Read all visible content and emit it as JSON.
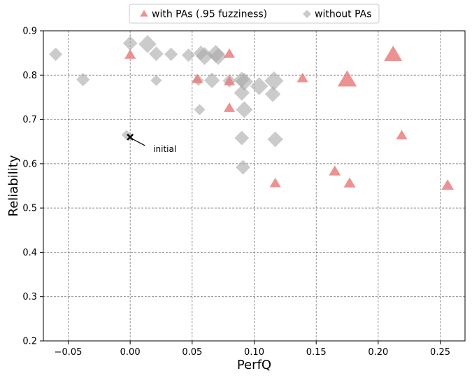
{
  "chart_data": {
    "type": "scatter",
    "xlabel": "PerfQ",
    "ylabel": "Reliability",
    "xlim": [
      -0.07,
      0.27
    ],
    "ylim": [
      0.2,
      0.9
    ],
    "xticks": [
      -0.05,
      0.0,
      0.05,
      0.1,
      0.15,
      0.2,
      0.25
    ],
    "xtick_labels": [
      "−0.05",
      "0.00",
      "0.05",
      "0.10",
      "0.15",
      "0.20",
      "0.25"
    ],
    "yticks": [
      0.2,
      0.3,
      0.4,
      0.5,
      0.6,
      0.7,
      0.8,
      0.9
    ],
    "ytick_labels": [
      "0.2",
      "0.3",
      "0.4",
      "0.5",
      "0.6",
      "0.7",
      "0.8",
      "0.9"
    ],
    "grid": true,
    "legend_position": "top-center",
    "series": [
      {
        "name": "with PAs (.95 fuzziness)",
        "marker": "triangle",
        "color": "#e8807f",
        "points": [
          {
            "x": 0.0,
            "y": 0.845,
            "s": 1
          },
          {
            "x": 0.054,
            "y": 0.79,
            "s": 1
          },
          {
            "x": 0.08,
            "y": 0.847,
            "s": 1
          },
          {
            "x": 0.08,
            "y": 0.785,
            "s": 1
          },
          {
            "x": 0.08,
            "y": 0.725,
            "s": 1
          },
          {
            "x": 0.117,
            "y": 0.555,
            "s": 1
          },
          {
            "x": 0.139,
            "y": 0.792,
            "s": 1
          },
          {
            "x": 0.165,
            "y": 0.582,
            "s": 1.05
          },
          {
            "x": 0.175,
            "y": 0.788,
            "s": 1.7
          },
          {
            "x": 0.177,
            "y": 0.555,
            "s": 1.05
          },
          {
            "x": 0.212,
            "y": 0.845,
            "s": 1.6
          },
          {
            "x": 0.219,
            "y": 0.663,
            "s": 1
          },
          {
            "x": 0.256,
            "y": 0.55,
            "s": 1.1
          }
        ]
      },
      {
        "name": "without PAs",
        "marker": "diamond",
        "color": "#a8a8a8",
        "points": [
          {
            "x": -0.06,
            "y": 0.847,
            "s": 1.2
          },
          {
            "x": -0.038,
            "y": 0.79,
            "s": 1.2
          },
          {
            "x": -0.003,
            "y": 0.665,
            "s": 0.9
          },
          {
            "x": 0.0,
            "y": 0.872,
            "s": 1.3
          },
          {
            "x": 0.014,
            "y": 0.87,
            "s": 1.6
          },
          {
            "x": 0.021,
            "y": 0.848,
            "s": 1.3
          },
          {
            "x": 0.021,
            "y": 0.788,
            "s": 1.0
          },
          {
            "x": 0.033,
            "y": 0.847,
            "s": 1.2
          },
          {
            "x": 0.047,
            "y": 0.845,
            "s": 1.2
          },
          {
            "x": 0.055,
            "y": 0.788,
            "s": 1.0
          },
          {
            "x": 0.056,
            "y": 0.722,
            "s": 1.0
          },
          {
            "x": 0.057,
            "y": 0.85,
            "s": 1.3
          },
          {
            "x": 0.06,
            "y": 0.843,
            "s": 1.6
          },
          {
            "x": 0.066,
            "y": 0.788,
            "s": 1.4
          },
          {
            "x": 0.069,
            "y": 0.848,
            "s": 1.6
          },
          {
            "x": 0.071,
            "y": 0.842,
            "s": 1.5
          },
          {
            "x": 0.08,
            "y": 0.787,
            "s": 1.2
          },
          {
            "x": 0.09,
            "y": 0.79,
            "s": 1.4
          },
          {
            "x": 0.09,
            "y": 0.76,
            "s": 1.4
          },
          {
            "x": 0.092,
            "y": 0.785,
            "s": 1.6
          },
          {
            "x": 0.092,
            "y": 0.722,
            "s": 1.5
          },
          {
            "x": 0.09,
            "y": 0.658,
            "s": 1.3
          },
          {
            "x": 0.091,
            "y": 0.592,
            "s": 1.3
          },
          {
            "x": 0.104,
            "y": 0.775,
            "s": 1.6
          },
          {
            "x": 0.115,
            "y": 0.757,
            "s": 1.4
          },
          {
            "x": 0.116,
            "y": 0.787,
            "s": 1.7
          },
          {
            "x": 0.117,
            "y": 0.655,
            "s": 1.4
          }
        ]
      }
    ],
    "annotations": [
      {
        "text": "initial",
        "x": 0.0,
        "y": 0.66,
        "marker": "x",
        "text_x": 0.013,
        "text_y": 0.622
      }
    ]
  }
}
